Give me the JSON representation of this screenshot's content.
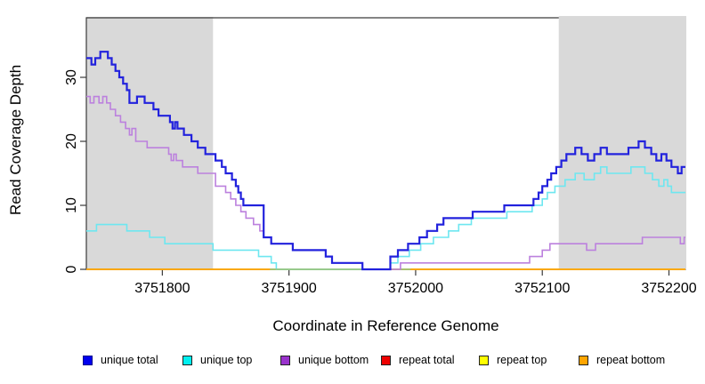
{
  "chart_data": {
    "type": "line",
    "subtype": "step-coverage",
    "title": "",
    "xlabel": "Coordinate in Reference Genome",
    "ylabel": "Read Coverage Depth",
    "x_range": [
      3751740,
      3752213
    ],
    "y_range": [
      0,
      39
    ],
    "x_ticks": [
      3751800,
      3751900,
      3752000,
      3752100,
      3752200
    ],
    "y_ticks": [
      0,
      10,
      20,
      30
    ],
    "grid": false,
    "legend_position": "bottom",
    "shade_color": "#d9d9d9",
    "shaded_regions": [
      {
        "from": 3751740,
        "to": 3751840
      },
      {
        "from": 3752113,
        "to": 3752213
      }
    ],
    "baseline_overlap_segment": {
      "from": 3751885,
      "to": 3751996,
      "value": 0,
      "color": "#8fc98f"
    },
    "series": [
      {
        "name": "unique total",
        "color": "#2222dd",
        "width": 2.2,
        "steps": [
          [
            3751740,
            33
          ],
          [
            3751744,
            32
          ],
          [
            3751747,
            33
          ],
          [
            3751751,
            34
          ],
          [
            3751757,
            33
          ],
          [
            3751760,
            32
          ],
          [
            3751763,
            31
          ],
          [
            3751766,
            30
          ],
          [
            3751769,
            29
          ],
          [
            3751772,
            28
          ],
          [
            3751774,
            26
          ],
          [
            3751780,
            27
          ],
          [
            3751786,
            26
          ],
          [
            3751793,
            25
          ],
          [
            3751797,
            24
          ],
          [
            3751806,
            23
          ],
          [
            3751808,
            22
          ],
          [
            3751810,
            23
          ],
          [
            3751812,
            22
          ],
          [
            3751817,
            21
          ],
          [
            3751823,
            20
          ],
          [
            3751828,
            19
          ],
          [
            3751834,
            18
          ],
          [
            3751842,
            17
          ],
          [
            3751847,
            16
          ],
          [
            3751850,
            15
          ],
          [
            3751855,
            14
          ],
          [
            3751858,
            13
          ],
          [
            3751860,
            12
          ],
          [
            3751862,
            11
          ],
          [
            3751864,
            10
          ],
          [
            3751880,
            5
          ],
          [
            3751886,
            4
          ],
          [
            3751903,
            3
          ],
          [
            3751929,
            2
          ],
          [
            3751934,
            1
          ],
          [
            3751958,
            0
          ],
          [
            3751980,
            2
          ],
          [
            3751986,
            3
          ],
          [
            3751994,
            4
          ],
          [
            3752003,
            5
          ],
          [
            3752009,
            6
          ],
          [
            3752017,
            7
          ],
          [
            3752022,
            8
          ],
          [
            3752045,
            9
          ],
          [
            3752070,
            10
          ],
          [
            3752093,
            11
          ],
          [
            3752097,
            12
          ],
          [
            3752100,
            13
          ],
          [
            3752104,
            14
          ],
          [
            3752107,
            15
          ],
          [
            3752111,
            16
          ],
          [
            3752115,
            17
          ],
          [
            3752119,
            18
          ],
          [
            3752126,
            19
          ],
          [
            3752131,
            18
          ],
          [
            3752136,
            17
          ],
          [
            3752141,
            18
          ],
          [
            3752146,
            19
          ],
          [
            3752151,
            18
          ],
          [
            3752168,
            19
          ],
          [
            3752176,
            20
          ],
          [
            3752181,
            19
          ],
          [
            3752186,
            18
          ],
          [
            3752190,
            17
          ],
          [
            3752194,
            18
          ],
          [
            3752198,
            17
          ],
          [
            3752202,
            16
          ],
          [
            3752207,
            15
          ],
          [
            3752210,
            16
          ]
        ]
      },
      {
        "name": "unique top",
        "color": "#6ee7f0",
        "width": 1.6,
        "steps": [
          [
            3751740,
            6
          ],
          [
            3751748,
            7
          ],
          [
            3751772,
            6
          ],
          [
            3751790,
            5
          ],
          [
            3751802,
            4
          ],
          [
            3751840,
            3
          ],
          [
            3751876,
            2
          ],
          [
            3751886,
            1
          ],
          [
            3751890,
            0
          ],
          [
            3751980,
            1
          ],
          [
            3751986,
            2
          ],
          [
            3751995,
            3
          ],
          [
            3752004,
            4
          ],
          [
            3752014,
            5
          ],
          [
            3752026,
            6
          ],
          [
            3752034,
            7
          ],
          [
            3752044,
            8
          ],
          [
            3752072,
            9
          ],
          [
            3752092,
            10
          ],
          [
            3752100,
            11
          ],
          [
            3752104,
            12
          ],
          [
            3752110,
            13
          ],
          [
            3752118,
            14
          ],
          [
            3752126,
            15
          ],
          [
            3752133,
            14
          ],
          [
            3752141,
            15
          ],
          [
            3752146,
            16
          ],
          [
            3752151,
            15
          ],
          [
            3752170,
            16
          ],
          [
            3752181,
            15
          ],
          [
            3752187,
            14
          ],
          [
            3752192,
            13
          ],
          [
            3752196,
            14
          ],
          [
            3752199,
            13
          ],
          [
            3752202,
            12
          ]
        ]
      },
      {
        "name": "unique bottom",
        "color": "#bc81de",
        "width": 1.6,
        "steps": [
          [
            3751740,
            27
          ],
          [
            3751743,
            26
          ],
          [
            3751746,
            27
          ],
          [
            3751750,
            26
          ],
          [
            3751753,
            27
          ],
          [
            3751756,
            26
          ],
          [
            3751759,
            25
          ],
          [
            3751763,
            24
          ],
          [
            3751767,
            23
          ],
          [
            3751771,
            22
          ],
          [
            3751774,
            21
          ],
          [
            3751776,
            22
          ],
          [
            3751779,
            20
          ],
          [
            3751788,
            19
          ],
          [
            3751805,
            18
          ],
          [
            3751807,
            17
          ],
          [
            3751809,
            18
          ],
          [
            3751811,
            17
          ],
          [
            3751816,
            16
          ],
          [
            3751828,
            15
          ],
          [
            3751842,
            13
          ],
          [
            3751850,
            12
          ],
          [
            3751854,
            11
          ],
          [
            3751858,
            10
          ],
          [
            3751862,
            9
          ],
          [
            3751866,
            8
          ],
          [
            3751872,
            7
          ],
          [
            3751877,
            6
          ],
          [
            3751880,
            5
          ],
          [
            3751886,
            4
          ],
          [
            3751903,
            3
          ],
          [
            3751929,
            2
          ],
          [
            3751934,
            1
          ],
          [
            3751958,
            0
          ],
          [
            3751988,
            1
          ],
          [
            3752090,
            2
          ],
          [
            3752100,
            3
          ],
          [
            3752106,
            4
          ],
          [
            3752135,
            3
          ],
          [
            3752142,
            4
          ],
          [
            3752179,
            5
          ],
          [
            3752209,
            4
          ],
          [
            3752212,
            5
          ]
        ]
      },
      {
        "name": "repeat total",
        "color": "#dd0000",
        "width": 1.6,
        "steps": [
          [
            3751740,
            0
          ]
        ]
      },
      {
        "name": "repeat top",
        "color": "#ffff00",
        "width": 1.6,
        "steps": [
          [
            3751740,
            0
          ]
        ]
      },
      {
        "name": "repeat bottom",
        "color": "#ffa500",
        "width": 1.6,
        "steps": [
          [
            3751740,
            0
          ]
        ]
      }
    ],
    "legend": [
      {
        "label": "unique total",
        "fill": "#0000ee",
        "border": "#00008b"
      },
      {
        "label": "unique top",
        "fill": "#00f0f0",
        "border": "#222222"
      },
      {
        "label": "unique bottom",
        "fill": "#9932cc",
        "border": "#222222"
      },
      {
        "label": "repeat total",
        "fill": "#ee0000",
        "border": "#222222"
      },
      {
        "label": "repeat top",
        "fill": "#ffff00",
        "border": "#222222"
      },
      {
        "label": "repeat bottom",
        "fill": "#ffa500",
        "border": "#222222"
      }
    ]
  }
}
